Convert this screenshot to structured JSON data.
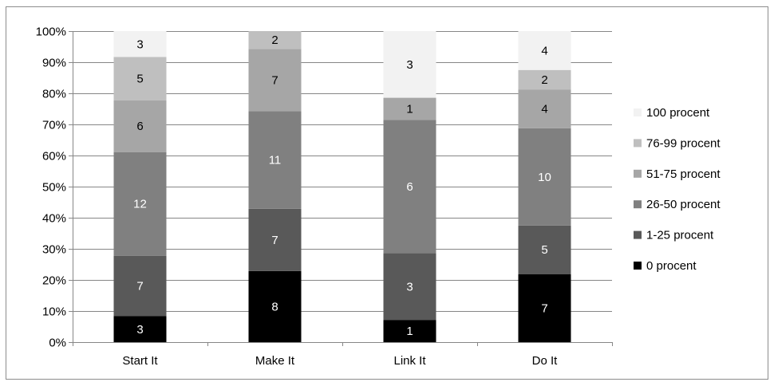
{
  "chart_data": {
    "type": "bar",
    "stacked": true,
    "percent_stacked": true,
    "categories": [
      "Start It",
      "Make It",
      "Link It",
      "Do It"
    ],
    "series": [
      {
        "name": "0 procent",
        "values": [
          3,
          8,
          1,
          7
        ],
        "color": "#000000",
        "label_color": "#ffffff"
      },
      {
        "name": "1-25 procent",
        "values": [
          7,
          7,
          3,
          5
        ],
        "color": "#595959",
        "label_color": "#ffffff"
      },
      {
        "name": "26-50 procent",
        "values": [
          12,
          11,
          6,
          10
        ],
        "color": "#808080",
        "label_color": "#ffffff"
      },
      {
        "name": "51-75 procent",
        "values": [
          6,
          7,
          1,
          4
        ],
        "color": "#a6a6a6",
        "label_color": "#000000"
      },
      {
        "name": "76-99 procent",
        "values": [
          5,
          2,
          0,
          2
        ],
        "color": "#bfbfbf",
        "label_color": "#000000"
      },
      {
        "name": "100 procent",
        "values": [
          3,
          0,
          3,
          4
        ],
        "color": "#f2f2f2",
        "label_color": "#000000"
      }
    ],
    "y_ticks": [
      "0%",
      "10%",
      "20%",
      "30%",
      "40%",
      "50%",
      "60%",
      "70%",
      "80%",
      "90%",
      "100%"
    ],
    "ylim": [
      0,
      100
    ],
    "grid": true,
    "legend_position": "right",
    "title": "",
    "xlabel": "",
    "ylabel": ""
  }
}
